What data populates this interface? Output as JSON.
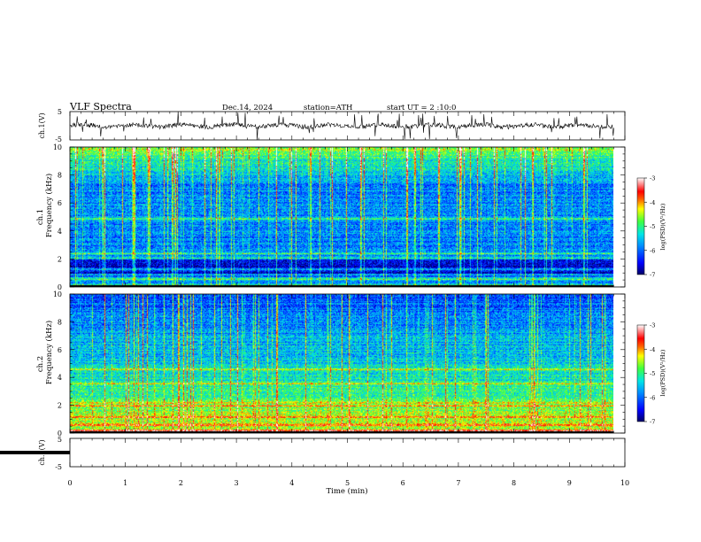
{
  "header": {
    "title": "VLF  Spectra",
    "date": "Dec.14, 2024",
    "station": "station=ATH",
    "start": "start  UT  =    2  :10:0"
  },
  "colors": {
    "colormap": [
      "#000066",
      "#0000ff",
      "#0090ff",
      "#00e5e5",
      "#40ff40",
      "#ffff00",
      "#ff6000",
      "#ff0000",
      "#ffffff"
    ]
  },
  "chart_data": [
    {
      "type": "line",
      "ylabel": "ch.1(V)",
      "ylim": [
        -5,
        5
      ],
      "yticks": [
        "5",
        "-5"
      ],
      "xlim": [
        0,
        10
      ]
    },
    {
      "type": "heatmap",
      "ylabel_channel": "ch.1",
      "ylabel": "Frequency  (kHz)",
      "ylim": [
        0,
        10
      ],
      "yticks": [
        "0",
        "2",
        "4",
        "6",
        "8",
        "10"
      ],
      "xlim": [
        0,
        10
      ],
      "data_end_min": 9.8,
      "colorbar": {
        "label": "log(PSD)(V²/Hz)",
        "range": [
          -7,
          -3
        ],
        "ticks": [
          "-3",
          "-4",
          "-5",
          "-6",
          "-7"
        ]
      },
      "bands_khz": [
        0.2,
        0.6,
        0.9,
        1.3,
        2.1,
        2.4,
        4.9
      ],
      "background_level": -5.9
    },
    {
      "type": "heatmap",
      "ylabel_channel": "ch.2",
      "ylabel": "Frequency  (kHz)",
      "ylim": [
        0,
        10
      ],
      "yticks": [
        "0",
        "2",
        "4",
        "6",
        "8",
        "10"
      ],
      "xlim": [
        0,
        10
      ],
      "data_end_min": 9.8,
      "colorbar": {
        "label": "log(PSD)(V²/Hz)",
        "range": [
          -7,
          -3
        ],
        "ticks": [
          "-3",
          "-4",
          "-5",
          "-6",
          "-7"
        ]
      },
      "bands_khz": [
        0.2,
        0.6,
        1.2,
        2.0,
        2.2,
        3.6,
        4.6
      ],
      "background_level": -5.4
    },
    {
      "type": "line",
      "ylabel": "ch.3(V)",
      "ylim": [
        -5,
        5
      ],
      "yticks": [
        "5",
        "-5"
      ],
      "xlim": [
        0,
        10
      ],
      "xlabel": "Time  (min)",
      "xticks": [
        "0",
        "1",
        "2",
        "3",
        "4",
        "5",
        "6",
        "7",
        "8",
        "9",
        "10"
      ],
      "constant_value": 0
    }
  ]
}
